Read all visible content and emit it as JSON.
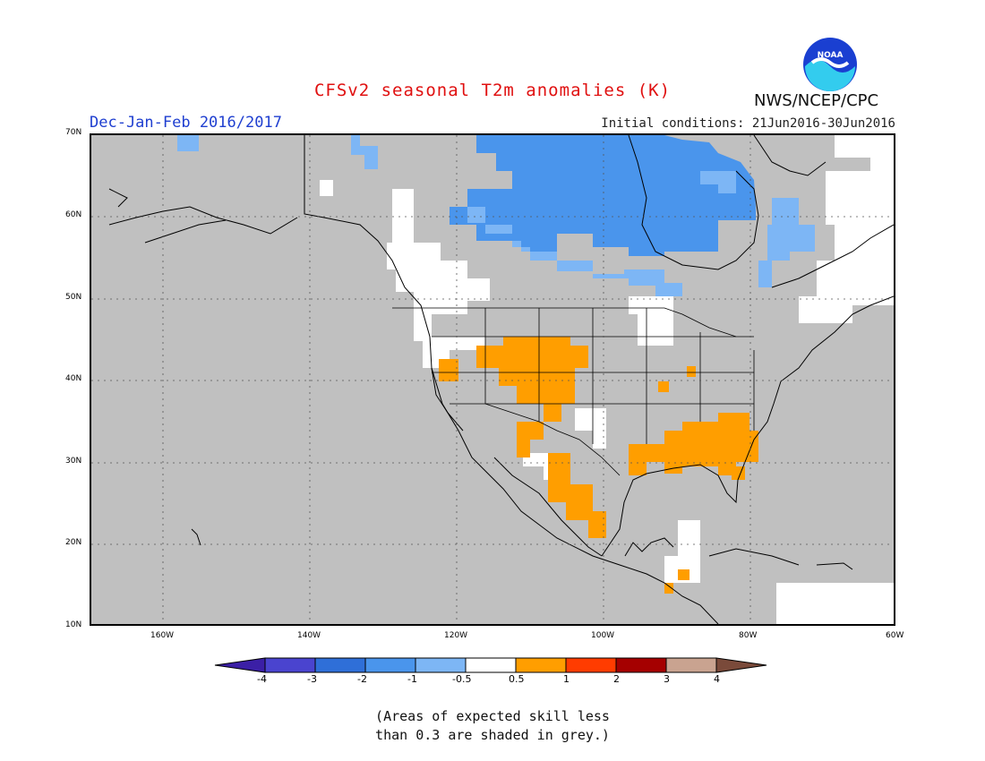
{
  "header": {
    "title": "CFSv2 seasonal T2m anomalies (K)",
    "period": "Dec-Jan-Feb 2016/2017",
    "initial_conditions": "Initial conditions: 21Jun2016-30Jun2016",
    "agency": "NWS/NCEP/CPC",
    "logo_text": "NOAA"
  },
  "map": {
    "lat_labels": [
      "70N",
      "60N",
      "50N",
      "40N",
      "30N",
      "20N",
      "10N"
    ],
    "lon_labels": [
      "160W",
      "140W",
      "120W",
      "100W",
      "80W",
      "60W"
    ],
    "lat_range": [
      10,
      70
    ],
    "lon_range": [
      -170,
      -60
    ],
    "grid": "dotted, every 10 degrees"
  },
  "colorbar": {
    "labels": [
      "-4",
      "-3",
      "-2",
      "-1",
      "-0.5",
      "0.5",
      "1",
      "2",
      "3",
      "4"
    ],
    "colors": [
      "#3b1fa6",
      "#4a44cf",
      "#2f6fd8",
      "#4a95ec",
      "#7db6f5",
      "#ffffff",
      "#ff9e00",
      "#ff3c00",
      "#a50000",
      "#c9a390",
      "#7a4a3a"
    ]
  },
  "footnote": {
    "line1": "(Areas of expected skill less",
    "line2": "than 0.3 are shaded in grey.)"
  }
}
